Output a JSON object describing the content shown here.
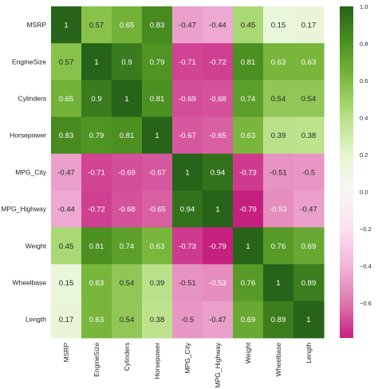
{
  "chart_data": {
    "type": "heatmap",
    "title": "",
    "xlabel": "",
    "ylabel": "",
    "variables": [
      "MSRP",
      "EngineSize",
      "Cylinders",
      "Horsepower",
      "MPG_City",
      "MPG_Highway",
      "Weight",
      "Wheelbase",
      "Length"
    ],
    "x_tick_labels": [
      "MSRP",
      "EngineSize",
      "Cylinders",
      "Horsepower",
      "MPG_City",
      "MPG_Highway",
      "Weight",
      "Wheelbase",
      "Length"
    ],
    "y_tick_labels": [
      "MSRP",
      "EngineSize",
      "Cylinders",
      "Horsepower",
      "MPG_City",
      "MPG_Highway",
      "Weight",
      "Wheelbase",
      "Length"
    ],
    "values": [
      [
        1,
        0.57,
        0.65,
        0.83,
        -0.47,
        -0.44,
        0.45,
        0.15,
        0.17
      ],
      [
        0.57,
        1,
        0.9,
        0.79,
        -0.71,
        -0.72,
        0.81,
        0.63,
        0.63
      ],
      [
        0.65,
        0.9,
        1,
        0.81,
        -0.69,
        -0.68,
        0.74,
        0.54,
        0.54
      ],
      [
        0.83,
        0.79,
        0.81,
        1,
        -0.67,
        -0.65,
        0.63,
        0.39,
        0.38
      ],
      [
        -0.47,
        -0.71,
        -0.69,
        -0.67,
        1,
        0.94,
        -0.73,
        -0.51,
        -0.5
      ],
      [
        -0.44,
        -0.72,
        -0.68,
        -0.65,
        0.94,
        1,
        -0.79,
        -0.53,
        -0.47
      ],
      [
        0.45,
        0.81,
        0.74,
        0.63,
        -0.73,
        -0.79,
        1,
        0.76,
        0.69
      ],
      [
        0.15,
        0.63,
        0.54,
        0.39,
        -0.51,
        -0.53,
        0.76,
        1,
        0.89
      ],
      [
        0.17,
        0.63,
        0.54,
        0.38,
        -0.5,
        -0.47,
        0.69,
        0.89,
        1
      ]
    ],
    "annotations": [
      [
        "1",
        "0.57",
        "0.65",
        "0.83",
        "-0.47",
        "-0.44",
        "0.45",
        "0.15",
        "0.17"
      ],
      [
        "0.57",
        "1",
        "0.9",
        "0.79",
        "-0.71",
        "-0.72",
        "0.81",
        "0.63",
        "0.63"
      ],
      [
        "0.65",
        "0.9",
        "1",
        "0.81",
        "-0.69",
        "-0.68",
        "0.74",
        "0.54",
        "0.54"
      ],
      [
        "0.83",
        "0.79",
        "0.81",
        "1",
        "-0.67",
        "-0.65",
        "0.63",
        "0.39",
        "0.38"
      ],
      [
        "-0.47",
        "-0.71",
        "-0.69",
        "-0.67",
        "1",
        "0.94",
        "-0.73",
        "-0.51",
        "-0.5"
      ],
      [
        "-0.44",
        "-0.72",
        "-0.68",
        "-0.65",
        "0.94",
        "1",
        "-0.79",
        "-0.53",
        "-0.47"
      ],
      [
        "0.45",
        "0.81",
        "0.74",
        "0.63",
        "-0.73",
        "-0.79",
        "1",
        "0.76",
        "0.69"
      ],
      [
        "0.15",
        "0.63",
        "0.54",
        "0.39",
        "-0.51",
        "-0.53",
        "0.76",
        "1",
        "0.89"
      ],
      [
        "0.17",
        "0.63",
        "0.54",
        "0.38",
        "-0.5",
        "-0.47",
        "0.69",
        "0.89",
        "1"
      ]
    ],
    "colormap": "PiYG",
    "vmin": -0.79,
    "vmax": 1,
    "colorbar": {
      "ticks": [
        -0.6,
        -0.4,
        -0.2,
        0.0,
        0.2,
        0.4,
        0.6,
        0.8,
        1.0
      ],
      "tick_labels": [
        "−0.6",
        "−0.4",
        "−0.2",
        "0.0",
        "0.2",
        "0.4",
        "0.6",
        "0.8",
        "1.0"
      ],
      "placement": "right"
    },
    "x_tick_rotation": "vertical",
    "grid": false,
    "colors": {
      "stops": [
        "#8e0152",
        "#c51b7d",
        "#de77ae",
        "#f1b6da",
        "#fde0ef",
        "#f7f7f7",
        "#e6f5d0",
        "#b8e186",
        "#7fbc41",
        "#4d9221",
        "#276419"
      ],
      "dark_text": "#262626",
      "light_text": "#ffffff"
    }
  }
}
